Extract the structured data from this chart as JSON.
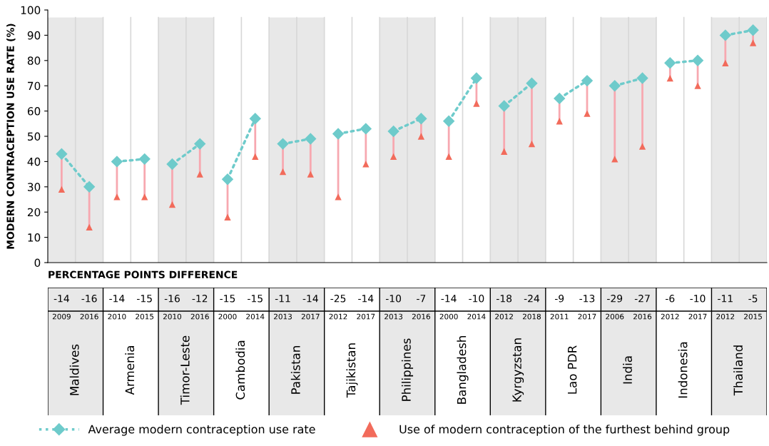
{
  "chart_data": [
    {
      "type": "line",
      "ylabel": "MODERN CONTRACEPTION USE RATE (%)",
      "categories": [
        "2009",
        "2016",
        "2010",
        "2015",
        "2010",
        "2016",
        "2000",
        "2014",
        "2013",
        "2017",
        "2012",
        "2017",
        "2013",
        "2016",
        "2000",
        "2014",
        "2012",
        "2018",
        "2011",
        "2017",
        "2006",
        "2016",
        "2012",
        "2017",
        "2012",
        "2015"
      ],
      "series": [
        {
          "name": "Average modern contraception use rate",
          "type": "line",
          "color": "#6ecbcb",
          "marker": "diamond",
          "line_style": "dotted",
          "values": [
            43,
            30,
            40,
            41,
            39,
            47,
            33,
            57,
            47,
            49,
            51,
            53,
            52,
            57,
            56,
            73,
            62,
            71,
            65,
            72,
            70,
            73,
            79,
            80,
            90,
            92
          ],
          "errors": [
            [
              29,
              43
            ],
            [
              14,
              30
            ],
            [
              26,
              40
            ],
            [
              26,
              41
            ],
            [
              23,
              39
            ],
            [
              35,
              47
            ],
            [
              18,
              33
            ],
            [
              42,
              57
            ],
            [
              36,
              47
            ],
            [
              35,
              49
            ],
            [
              26,
              51
            ],
            [
              39,
              53
            ],
            [
              42,
              52
            ],
            [
              50,
              57
            ],
            [
              42,
              56
            ],
            [
              63,
              73
            ],
            [
              44,
              62
            ],
            [
              47,
              71
            ],
            [
              56,
              65
            ],
            [
              59,
              72
            ],
            [
              41,
              70
            ],
            [
              46,
              73
            ],
            [
              73,
              79
            ],
            [
              70,
              80
            ],
            [
              79,
              90
            ],
            [
              87,
              92
            ]
          ]
        },
        {
          "name": "Use of modern contraception of the furthest behind group",
          "type": "scatter",
          "color": "#f26b5b",
          "marker": "triangle",
          "values": [
            29,
            14,
            26,
            26,
            23,
            35,
            18,
            42,
            36,
            35,
            26,
            39,
            42,
            50,
            42,
            63,
            44,
            47,
            56,
            59,
            41,
            46,
            73,
            70,
            79,
            87
          ]
        }
      ],
      "ylim": [
        0,
        100
      ],
      "yticks": [
        0,
        10,
        20,
        30,
        40,
        50,
        60,
        70,
        80,
        90,
        100
      ],
      "grid": false,
      "legend": "bottom"
    },
    {
      "type": "other",
      "title": "PERCENTAGE POINTS DIFFERENCE",
      "categories": [
        "Maldives",
        "Armenia",
        "Timor-Leste",
        "Cambodia",
        "Pakistan",
        "Tajikistan",
        "Philippines",
        "Bangladesh",
        "Kyrgyzstan",
        "Lao PDR",
        "India",
        "Indonesia",
        "Thailand"
      ],
      "annotations": [
        "-14",
        "-16",
        "-14",
        "-15",
        "-16",
        "-12",
        "-15",
        "-15",
        "-11",
        "-14",
        "-25",
        "-14",
        "-10",
        "-7",
        "-14",
        "-10",
        "-18",
        "-24",
        "-9",
        "-13",
        "-29",
        "-27",
        "-6",
        "-10",
        "-11",
        "-5"
      ]
    }
  ]
}
